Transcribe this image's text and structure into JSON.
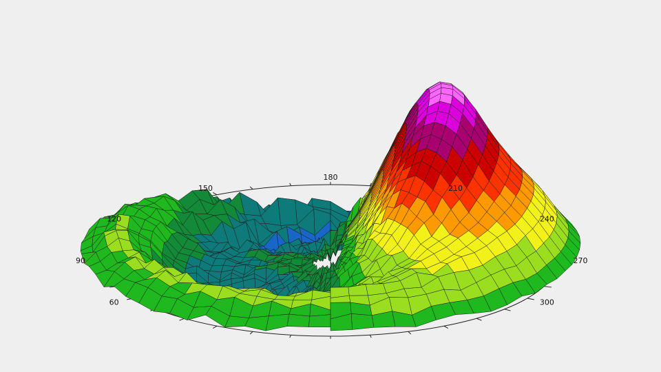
{
  "chart_data": {
    "type": "surface-3d-polar",
    "title": "",
    "angular_axis": {
      "tick_labels": [
        "60",
        "90",
        "120",
        "150",
        "180",
        "210",
        "240",
        "270",
        "300"
      ],
      "tick_angles_deg": [
        60,
        90,
        120,
        150,
        180,
        210,
        240,
        270,
        300
      ],
      "minor_tick_step_deg": 10
    },
    "surface": {
      "description_values": "single peak (maximum) near azimuth ~265 deg, mid radius; shallow basin near azimuth ~50 deg; low values and spikes toward the front (azimuth 150-215 deg)",
      "color_scale": [
        "#1010ff",
        "#1866c8",
        "#0f7a7a",
        "#138a38",
        "#1fb81f",
        "#9ade1f",
        "#f2f21a",
        "#ff9900",
        "#ff3300",
        "#cc0000",
        "#a8006e",
        "#dc00dc",
        "#ff66ff"
      ],
      "peak_azimuth_deg": 265,
      "basin_azimuth_deg": 50
    },
    "grid": true,
    "legend": "none",
    "colors": {
      "background": "#efefef",
      "mesh_line": "#1a1a1a",
      "axis": "#222222"
    }
  }
}
